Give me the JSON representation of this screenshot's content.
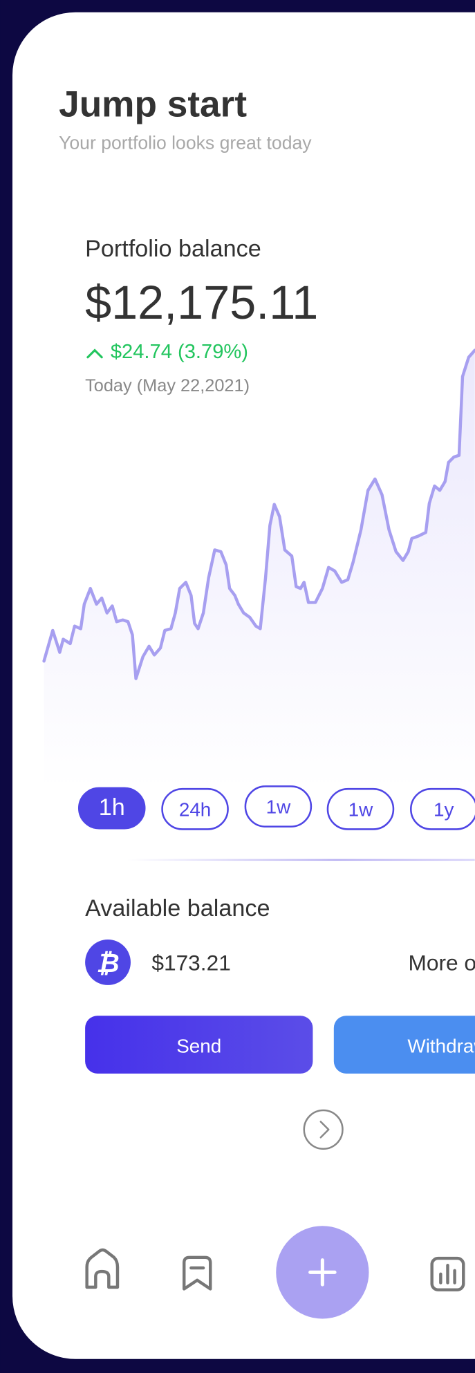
{
  "header": {
    "title": "Jump start",
    "subtitle": "Your portfolio looks great today"
  },
  "portfolio": {
    "label": "Portfolio balance",
    "balance": "$12,175.11",
    "change": "$24.74 (3.79%)",
    "date": "Today (May 22,2021)"
  },
  "ranges": [
    "1h",
    "24h",
    "1w",
    "1w",
    "1y"
  ],
  "available": {
    "label": "Available balance",
    "coin_icon": "₿",
    "amount": "$173.21",
    "more": "More options"
  },
  "actions": {
    "send": "Send",
    "withdraw": "Withdraw"
  }
}
